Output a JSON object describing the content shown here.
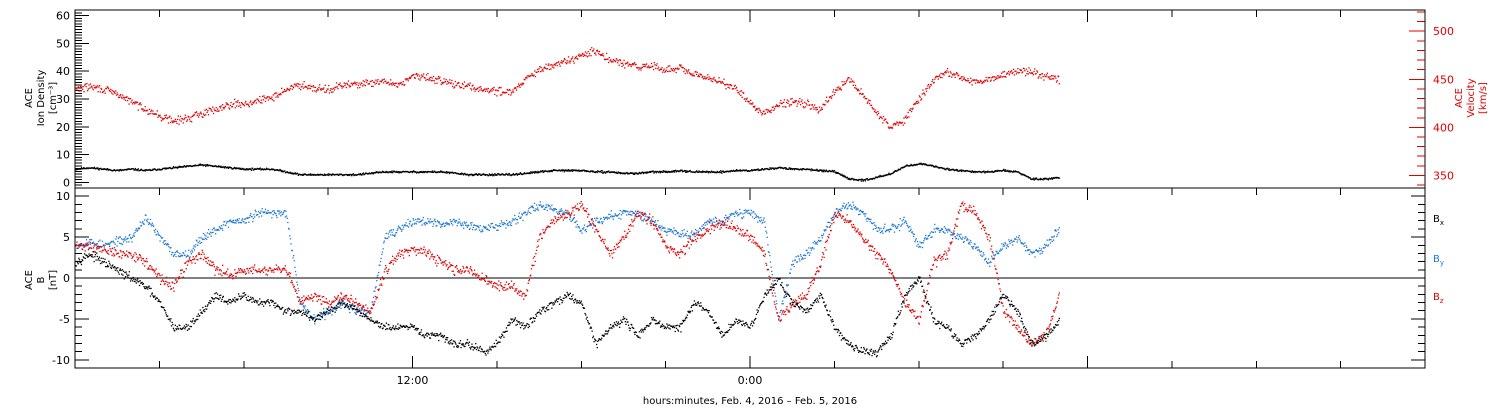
{
  "chart_data": [
    {
      "type": "scatter",
      "panel": "plasma",
      "ylabel_left": [
        "ACE",
        "Ion Density",
        "[cm⁻³]"
      ],
      "ylabel_right": [
        "ACE",
        "Velocity",
        "[km/s]"
      ],
      "ylim_left": [
        -2,
        62
      ],
      "ylim_right": [
        337,
        522
      ],
      "yticks_left": [
        0,
        10,
        20,
        30,
        40,
        50,
        60
      ],
      "yticks_right": [
        350,
        400,
        450,
        500
      ],
      "xlim_hours": [
        0,
        48
      ],
      "series": [
        {
          "axis": "left",
          "color": "#000000",
          "x": [
            0,
            0.5,
            1,
            1.5,
            2,
            2.5,
            3,
            3.5,
            4,
            4.5,
            5,
            5.5,
            6,
            6.5,
            7,
            7.5,
            8,
            8.5,
            9,
            9.5,
            10,
            10.5,
            11,
            11.5,
            12,
            12.5,
            13,
            13.5,
            14,
            14.5,
            15,
            15.5,
            16,
            16.5,
            17,
            17.5,
            18,
            18.5,
            19,
            19.5,
            20,
            20.5,
            21,
            21.5,
            22,
            22.5,
            23,
            23.5,
            24,
            24.5,
            25,
            25.5,
            26,
            26.5,
            27,
            27.5,
            28,
            28.5,
            29,
            29.5,
            30,
            30.5,
            31,
            31.5,
            32,
            32.5,
            33,
            33.5,
            34,
            34.5,
            35
          ],
          "values": [
            5,
            5.5,
            5,
            4.5,
            5,
            4.5,
            5,
            5.5,
            6,
            6.5,
            6,
            5.5,
            5,
            5,
            5,
            4,
            3,
            3,
            3,
            3,
            3,
            3.5,
            4,
            4,
            4,
            4,
            4,
            3.5,
            3,
            3,
            3,
            3,
            3.5,
            4,
            4.5,
            4.5,
            4.5,
            4,
            4,
            3.5,
            3.5,
            4,
            4,
            4.5,
            4,
            4,
            4,
            4.5,
            4.5,
            5,
            5.5,
            5,
            5,
            4.5,
            4,
            1.5,
            1,
            2,
            3.5,
            6,
            7,
            6,
            5,
            4.5,
            4,
            4,
            4.5,
            4,
            1.5,
            1.5,
            2
          ]
        },
        {
          "axis": "right",
          "color": "#e00000",
          "x": [
            0,
            0.5,
            1,
            1.5,
            2,
            2.5,
            3,
            3.5,
            4,
            4.5,
            5,
            5.5,
            6,
            6.5,
            7,
            7.5,
            8,
            8.5,
            9,
            9.5,
            10,
            10.5,
            11,
            11.5,
            12,
            12.5,
            13,
            13.5,
            14,
            14.5,
            15,
            15.5,
            16,
            16.5,
            17,
            17.5,
            18,
            18.5,
            19,
            19.5,
            20,
            20.5,
            21,
            21.5,
            22,
            22.5,
            23,
            23.5,
            24,
            24.5,
            25,
            25.5,
            26,
            26.5,
            27,
            27.5,
            28,
            28.5,
            29,
            29.5,
            30,
            30.5,
            31,
            31.5,
            32,
            32.5,
            33,
            33.5,
            34,
            34.5,
            35
          ],
          "values": [
            440,
            443,
            440,
            435,
            427,
            420,
            412,
            407,
            410,
            415,
            420,
            425,
            425,
            428,
            432,
            440,
            445,
            442,
            440,
            444,
            446,
            446,
            448,
            445,
            454,
            452,
            450,
            445,
            443,
            440,
            438,
            438,
            450,
            460,
            465,
            470,
            475,
            480,
            470,
            467,
            463,
            465,
            460,
            462,
            455,
            452,
            448,
            440,
            425,
            415,
            425,
            428,
            425,
            420,
            438,
            450,
            435,
            415,
            400,
            410,
            430,
            450,
            458,
            452,
            447,
            450,
            455,
            460,
            458,
            455,
            450
          ]
        }
      ]
    },
    {
      "type": "scatter",
      "panel": "magnetic-field",
      "ylabel_left": [
        "ACE",
        "B",
        "[nT]"
      ],
      "ylim": [
        -11,
        11
      ],
      "yticks": [
        -10,
        -5,
        0,
        5,
        10
      ],
      "zero_line": true,
      "xlim_hours": [
        0,
        48
      ],
      "xticks_hours": [
        0,
        3,
        6,
        9,
        12,
        15,
        18,
        21,
        24,
        27,
        30,
        33,
        36,
        39,
        42,
        45,
        48
      ],
      "xticklabels": [
        {
          "hour": 12,
          "label": "12:00"
        },
        {
          "hour": 24,
          "label": "0:00"
        }
      ],
      "xlabel": "hours:minutes, Feb.  4, 2016 – Feb.  5, 2016",
      "legend": [
        "Bx",
        "By",
        "Bz"
      ],
      "series": [
        {
          "name": "Bx",
          "color": "#000000",
          "x": [
            0,
            0.5,
            1,
            1.5,
            2,
            2.5,
            3,
            3.5,
            4,
            4.5,
            5,
            5.5,
            6,
            6.5,
            7,
            7.5,
            8,
            8.5,
            9,
            9.5,
            10,
            10.5,
            11,
            11.5,
            12,
            12.5,
            13,
            13.5,
            14,
            14.5,
            15,
            15.5,
            16,
            16.5,
            17,
            17.5,
            18,
            18.5,
            19,
            19.5,
            20,
            20.5,
            21,
            21.5,
            22,
            22.5,
            23,
            23.5,
            24,
            24.5,
            25,
            25.5,
            26,
            26.5,
            27,
            27.5,
            28,
            28.5,
            29,
            29.5,
            30,
            30.5,
            31,
            31.5,
            32,
            32.5,
            33,
            33.5,
            34,
            34.5,
            35
          ],
          "values": [
            2,
            3,
            2,
            1,
            0,
            -1,
            -3,
            -6,
            -6,
            -4,
            -2,
            -3,
            -2,
            -3,
            -3,
            -4,
            -4,
            -5,
            -4,
            -3,
            -4,
            -5,
            -6,
            -6,
            -6,
            -7,
            -7,
            -8,
            -8,
            -9,
            -8,
            -5,
            -6,
            -4,
            -3,
            -2,
            -3,
            -8,
            -6,
            -5,
            -7,
            -5,
            -6,
            -6,
            -3,
            -4,
            -7,
            -5,
            -6,
            -2,
            0,
            -3,
            -4,
            -2,
            -6,
            -8,
            -9,
            -9,
            -7,
            -2,
            0,
            -5,
            -6,
            -8,
            -7,
            -5,
            -2,
            -4,
            -8,
            -7,
            -5
          ]
        },
        {
          "name": "By",
          "color": "#1e78d2",
          "x": [
            0,
            0.5,
            1,
            1.5,
            2,
            2.5,
            3,
            3.5,
            4,
            4.5,
            5,
            5.5,
            6,
            6.5,
            7,
            7.5,
            8,
            8.5,
            9,
            9.5,
            10,
            10.5,
            11,
            11.5,
            12,
            12.5,
            13,
            13.5,
            14,
            14.5,
            15,
            15.5,
            16,
            16.5,
            17,
            17.5,
            18,
            18.5,
            19,
            19.5,
            20,
            20.5,
            21,
            21.5,
            22,
            22.5,
            23,
            23.5,
            24,
            24.5,
            25,
            25.5,
            26,
            26.5,
            27,
            27.5,
            28,
            28.5,
            29,
            29.5,
            30,
            30.5,
            31,
            31.5,
            32,
            32.5,
            33,
            33.5,
            34,
            34.5,
            35
          ],
          "values": [
            4,
            4.5,
            4,
            4.5,
            5,
            7.5,
            5,
            3,
            3,
            5,
            6,
            7,
            7,
            8,
            8,
            8,
            -3,
            -5,
            -4,
            -3,
            -4,
            -4,
            5,
            6,
            7,
            7,
            6.5,
            7,
            6.5,
            6,
            6.5,
            7,
            8,
            9,
            8.5,
            8,
            6,
            7,
            7.5,
            8,
            8,
            7,
            6,
            5.5,
            5.5,
            7,
            7,
            8,
            8,
            7,
            -5,
            2,
            3,
            5,
            8,
            9,
            8,
            6,
            6,
            7,
            4,
            6,
            6,
            5,
            4,
            2,
            4,
            5,
            3,
            4,
            6
          ]
        },
        {
          "name": "Bz",
          "color": "#e00000",
          "x": [
            0,
            0.5,
            1,
            1.5,
            2,
            2.5,
            3,
            3.5,
            4,
            4.5,
            5,
            5.5,
            6,
            6.5,
            7,
            7.5,
            8,
            8.5,
            9,
            9.5,
            10,
            10.5,
            11,
            11.5,
            12,
            12.5,
            13,
            13.5,
            14,
            14.5,
            15,
            15.5,
            16,
            16.5,
            17,
            17.5,
            18,
            18.5,
            19,
            19.5,
            20,
            20.5,
            21,
            21.5,
            22,
            22.5,
            23,
            23.5,
            24,
            24.5,
            25,
            25.5,
            26,
            26.5,
            27,
            27.5,
            28,
            28.5,
            29,
            29.5,
            30,
            30.5,
            31,
            31.5,
            32,
            32.5,
            33,
            33.5,
            34,
            34.5,
            35
          ],
          "values": [
            4,
            4,
            3.5,
            3,
            3,
            2,
            0,
            -1,
            2,
            3,
            1,
            0.5,
            1,
            1,
            1,
            1,
            -3,
            -2,
            -3,
            -2,
            -3,
            -4,
            1,
            3,
            3.5,
            3,
            2,
            1,
            1,
            0,
            -1,
            -1,
            -2,
            5,
            7,
            8,
            9,
            6,
            3,
            5,
            8,
            7,
            4,
            3,
            5,
            6,
            7,
            6,
            5,
            3,
            -5,
            -3,
            -2,
            2,
            8,
            7,
            5,
            3,
            1,
            -3,
            -5,
            2,
            3,
            9,
            8,
            5,
            -4,
            -6,
            -8,
            -7,
            -2
          ]
        }
      ]
    }
  ]
}
